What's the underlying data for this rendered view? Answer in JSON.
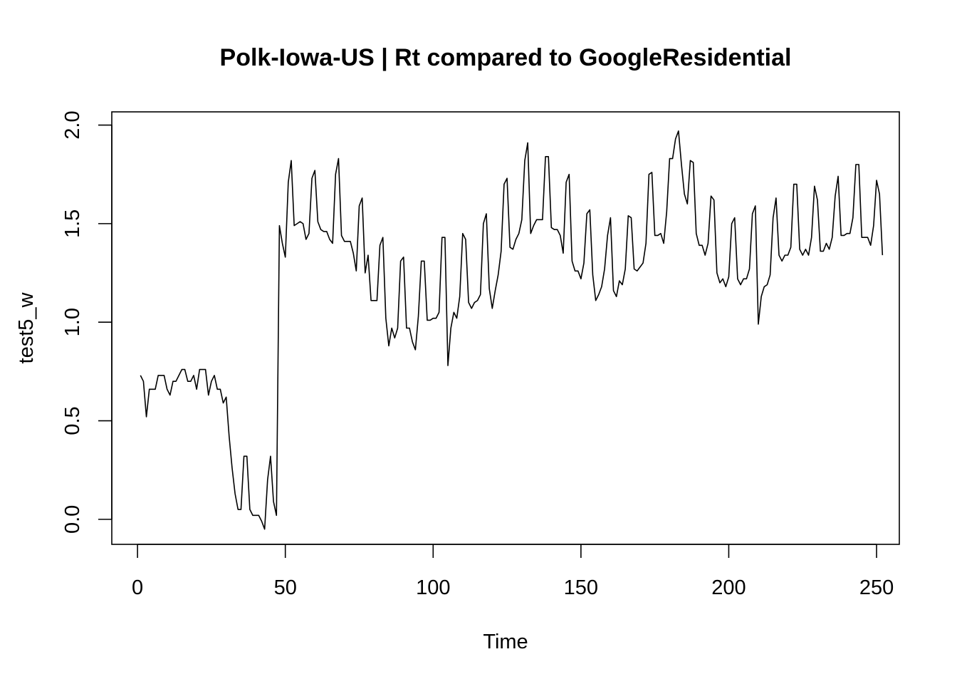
{
  "chart_data": {
    "type": "line",
    "title": "Polk-Iowa-US | Rt compared to GoogleResidential",
    "xlabel": "Time",
    "ylabel": "test5_w",
    "xlim": [
      -8.7,
      257.7
    ],
    "ylim": [
      -0.127,
      2.067
    ],
    "xticks": [
      0,
      50,
      100,
      150,
      200,
      250
    ],
    "yticks": [
      0.0,
      0.5,
      1.0,
      1.5,
      2.0
    ],
    "xtick_labels": [
      "0",
      "50",
      "100",
      "150",
      "200",
      "250"
    ],
    "ytick_labels": [
      "0.0",
      "0.5",
      "1.0",
      "1.5",
      "2.0"
    ],
    "grid": false,
    "line_color": "#000000",
    "series": [
      {
        "values": [
          0.73,
          0.7,
          0.52,
          0.66,
          0.66,
          0.66,
          0.73,
          0.73,
          0.73,
          0.66,
          0.63,
          0.7,
          0.7,
          0.73,
          0.76,
          0.76,
          0.7,
          0.7,
          0.73,
          0.66,
          0.76,
          0.76,
          0.76,
          0.63,
          0.7,
          0.73,
          0.66,
          0.66,
          0.59,
          0.62,
          0.42,
          0.26,
          0.13,
          0.05,
          0.05,
          0.32,
          0.32,
          0.05,
          0.02,
          0.02,
          0.02,
          -0.01,
          -0.05,
          0.2,
          0.32,
          0.09,
          0.02,
          1.49,
          1.4,
          1.33,
          1.71,
          1.82,
          1.49,
          1.5,
          1.51,
          1.5,
          1.42,
          1.45,
          1.73,
          1.77,
          1.51,
          1.47,
          1.46,
          1.46,
          1.42,
          1.4,
          1.75,
          1.83,
          1.44,
          1.41,
          1.41,
          1.41,
          1.35,
          1.26,
          1.59,
          1.63,
          1.25,
          1.34,
          1.11,
          1.11,
          1.11,
          1.39,
          1.43,
          1.02,
          0.88,
          0.97,
          0.92,
          0.97,
          1.31,
          1.33,
          0.97,
          0.97,
          0.9,
          0.86,
          1.03,
          1.31,
          1.31,
          1.01,
          1.01,
          1.02,
          1.02,
          1.05,
          1.43,
          1.43,
          0.78,
          0.97,
          1.05,
          1.02,
          1.13,
          1.45,
          1.42,
          1.1,
          1.07,
          1.1,
          1.11,
          1.14,
          1.5,
          1.55,
          1.17,
          1.07,
          1.16,
          1.24,
          1.36,
          1.7,
          1.73,
          1.38,
          1.37,
          1.42,
          1.45,
          1.52,
          1.82,
          1.91,
          1.45,
          1.49,
          1.52,
          1.52,
          1.52,
          1.84,
          1.84,
          1.48,
          1.47,
          1.47,
          1.44,
          1.35,
          1.71,
          1.75,
          1.31,
          1.26,
          1.26,
          1.22,
          1.3,
          1.55,
          1.57,
          1.24,
          1.11,
          1.14,
          1.18,
          1.27,
          1.44,
          1.53,
          1.16,
          1.13,
          1.21,
          1.19,
          1.27,
          1.54,
          1.53,
          1.27,
          1.26,
          1.28,
          1.3,
          1.4,
          1.75,
          1.76,
          1.44,
          1.44,
          1.45,
          1.4,
          1.56,
          1.83,
          1.83,
          1.93,
          1.97,
          1.8,
          1.65,
          1.6,
          1.82,
          1.81,
          1.45,
          1.39,
          1.39,
          1.34,
          1.4,
          1.64,
          1.62,
          1.25,
          1.2,
          1.22,
          1.18,
          1.23,
          1.5,
          1.53,
          1.22,
          1.19,
          1.22,
          1.22,
          1.27,
          1.55,
          1.59,
          0.99,
          1.13,
          1.18,
          1.19,
          1.24,
          1.53,
          1.63,
          1.34,
          1.31,
          1.34,
          1.34,
          1.38,
          1.7,
          1.7,
          1.37,
          1.34,
          1.37,
          1.34,
          1.43,
          1.69,
          1.62,
          1.36,
          1.36,
          1.4,
          1.37,
          1.43,
          1.64,
          1.74,
          1.44,
          1.44,
          1.45,
          1.45,
          1.53,
          1.8,
          1.8,
          1.43,
          1.43,
          1.43,
          1.39,
          1.49,
          1.72,
          1.65,
          1.34
        ]
      }
    ]
  }
}
